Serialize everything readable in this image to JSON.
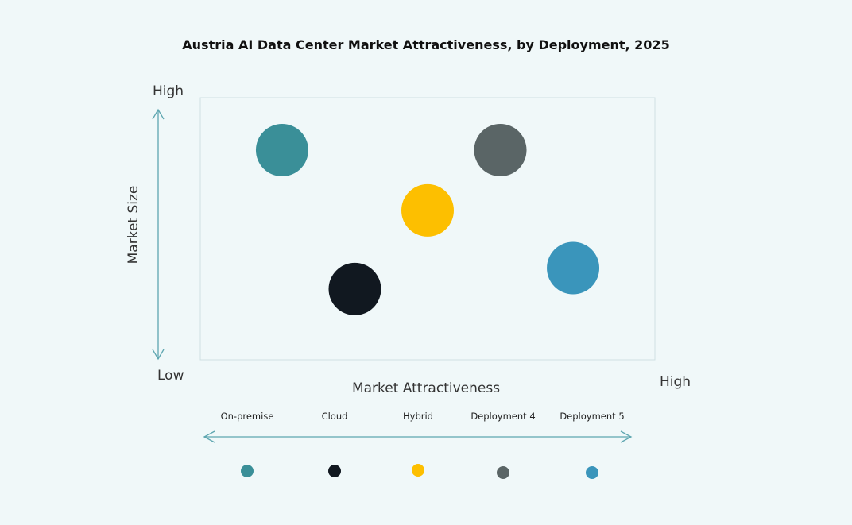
{
  "chart_data": {
    "type": "scatter",
    "title": "Austria AI Data Center Market Attractiveness,  by Deployment, 2025",
    "xlabel": "Market Attractiveness",
    "ylabel": "Market Size",
    "x_low_label": "Low",
    "x_high_label": "High",
    "y_high_label": "High",
    "xlim": [
      0,
      100
    ],
    "ylim": [
      0,
      100
    ],
    "grid": false,
    "legend_placement": "bottom",
    "series": [
      {
        "name": "On-premise",
        "x": 18,
        "y": 80,
        "color": "#3a8f98"
      },
      {
        "name": "Cloud",
        "x": 34,
        "y": 27,
        "color": "#111820"
      },
      {
        "name": "Hybrid",
        "x": 50,
        "y": 57,
        "color": "#fdbf00"
      },
      {
        "name": "Deployment 4",
        "x": 66,
        "y": 80,
        "color": "#5a6566"
      },
      {
        "name": "Deployment 5",
        "x": 82,
        "y": 35,
        "color": "#3a95bb"
      }
    ],
    "axis_color": "#5ea6b0"
  }
}
